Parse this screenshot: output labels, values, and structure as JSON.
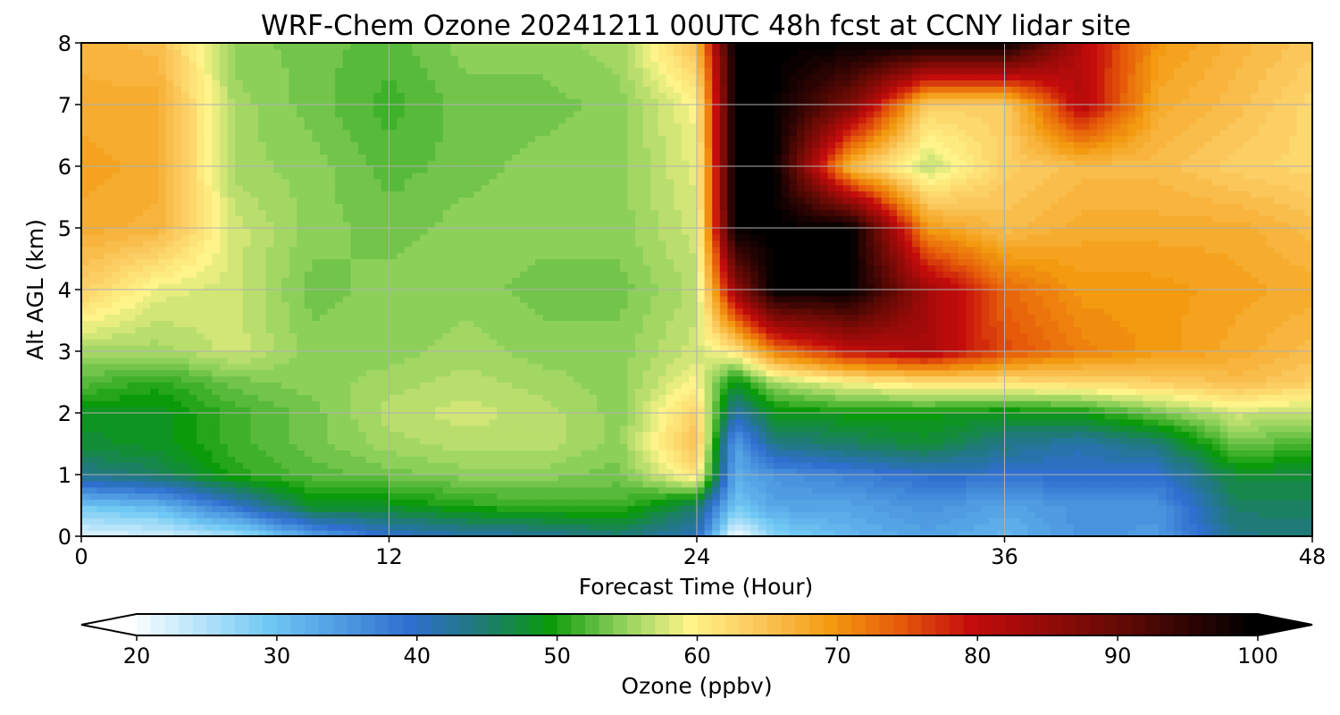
{
  "chart_data": {
    "type": "heatmap",
    "title": "WRF-Chem Ozone  20241211 00UTC 48h fcst at CCNY lidar site",
    "xlabel": "Forecast Time (Hour)",
    "ylabel": "Alt AGL (km)",
    "xlim": [
      0,
      48
    ],
    "ylim": [
      0,
      8
    ],
    "xticks": [
      0,
      12,
      24,
      36,
      48
    ],
    "yticks": [
      0,
      1,
      2,
      3,
      4,
      5,
      6,
      7,
      8
    ],
    "grid": true,
    "colorbar": {
      "label": "Ozone  (ppbv)",
      "min": 20,
      "max": 100,
      "ticks": [
        20,
        30,
        40,
        50,
        60,
        70,
        80,
        90,
        100
      ],
      "extend": "both",
      "colors": [
        {
          "value": 20,
          "color": "#ffffff"
        },
        {
          "value": 30,
          "color": "#6fc8f4"
        },
        {
          "value": 40,
          "color": "#2f6fcf"
        },
        {
          "value": 45,
          "color": "#1f7a78"
        },
        {
          "value": 50,
          "color": "#0a9a0a"
        },
        {
          "value": 55,
          "color": "#8cd05a"
        },
        {
          "value": 60,
          "color": "#fff48a"
        },
        {
          "value": 65,
          "color": "#fbc65a"
        },
        {
          "value": 70,
          "color": "#f39a10"
        },
        {
          "value": 75,
          "color": "#e65a0a"
        },
        {
          "value": 80,
          "color": "#c40c0c"
        },
        {
          "value": 90,
          "color": "#6a0a05"
        },
        {
          "value": 100,
          "color": "#000000"
        }
      ]
    },
    "hours": [
      0,
      3,
      6,
      9,
      12,
      15,
      18,
      21,
      24,
      25.5,
      27,
      30,
      33,
      36,
      39,
      42,
      45,
      48
    ],
    "heights": [
      0,
      0.5,
      1,
      1.5,
      2,
      2.5,
      3,
      4,
      5,
      6,
      7,
      8
    ],
    "values": [
      [
        22,
        23,
        26,
        34,
        40,
        42,
        43,
        45,
        41,
        20,
        28,
        32,
        34,
        32,
        36,
        35,
        44,
        45
      ],
      [
        30,
        32,
        40,
        49,
        49,
        51,
        52,
        52,
        46,
        30,
        34,
        34,
        36,
        34,
        36,
        36,
        46,
        46
      ],
      [
        44,
        46,
        51,
        53,
        54,
        55,
        55,
        54,
        62,
        33,
        36,
        38,
        40,
        40,
        40,
        40,
        48,
        48
      ],
      [
        48,
        49,
        52,
        54,
        56,
        57,
        57,
        55,
        66,
        34,
        44,
        46,
        48,
        44,
        42,
        45,
        54,
        52
      ],
      [
        49,
        49,
        52,
        54,
        57,
        58,
        57,
        55,
        64,
        42,
        49,
        50,
        50,
        49,
        50,
        54,
        58,
        57
      ],
      [
        53,
        51,
        54,
        55,
        56,
        57,
        56,
        55,
        60,
        49,
        56,
        60,
        62,
        62,
        63,
        64,
        66,
        64
      ],
      [
        56,
        56,
        58,
        55,
        55,
        56,
        55,
        55,
        58,
        61,
        72,
        80,
        83,
        76,
        72,
        70,
        68,
        66
      ],
      [
        64,
        59,
        58,
        54,
        55,
        55,
        54,
        54,
        57,
        85,
        100,
        100,
        84,
        74,
        70,
        70,
        69,
        68
      ],
      [
        68,
        67,
        58,
        55,
        54,
        55,
        55,
        55,
        58,
        100,
        100,
        100,
        70,
        66,
        68,
        68,
        68,
        66
      ],
      [
        69,
        68,
        56,
        55,
        53,
        54,
        55,
        55,
        59,
        100,
        100,
        66,
        57,
        64,
        66,
        66,
        64,
        63
      ],
      [
        68,
        68,
        56,
        54,
        52,
        54,
        54,
        55,
        60,
        100,
        100,
        88,
        64,
        64,
        82,
        68,
        66,
        63
      ],
      [
        67,
        66,
        55,
        54,
        53,
        55,
        55,
        56,
        66,
        100,
        100,
        100,
        100,
        100,
        82,
        70,
        67,
        65
      ]
    ]
  }
}
